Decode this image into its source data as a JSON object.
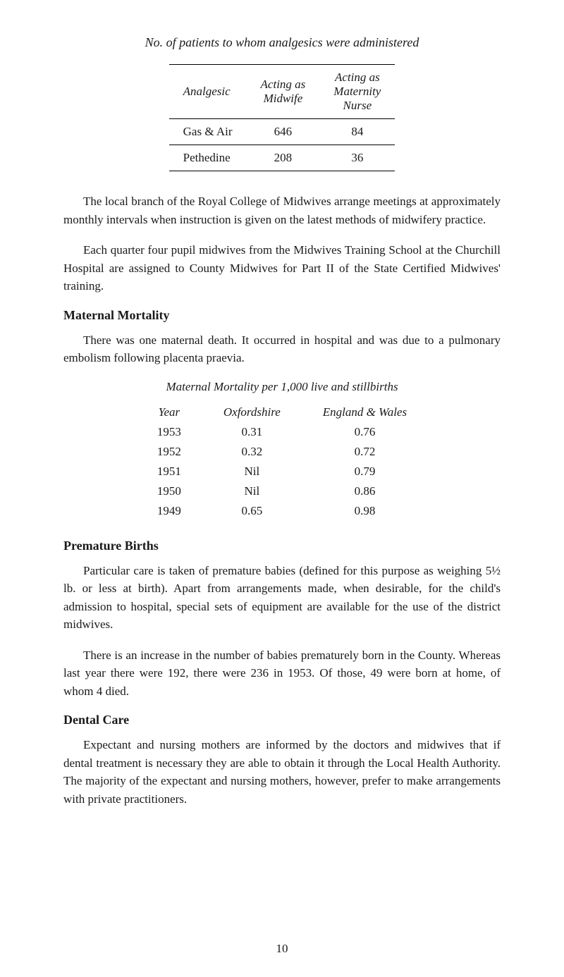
{
  "title": "No. of patients to whom analgesics were administered",
  "table1": {
    "headers": {
      "col1": "Analgesic",
      "col2": "Acting as Midwife",
      "col3": "Acting as Maternity Nurse"
    },
    "rows": [
      {
        "analgesic": "Gas & Air",
        "midwife": "646",
        "nurse": "84"
      },
      {
        "analgesic": "Pethedine",
        "midwife": "208",
        "nurse": "36"
      }
    ]
  },
  "para1": "The local branch of the Royal College of Midwives arrange meetings at approximately monthly intervals when instruction is given on the latest methods of midwifery practice.",
  "para2": "Each quarter four pupil midwives from the Midwives Training School at the Churchill Hospital are assigned to County Midwives for Part II of the State Certified Midwives' training.",
  "section1": {
    "heading": "Maternal Mortality",
    "para": "There was one maternal death. It occurred in hospital and was due to a pulmonary embolism following placenta praevia.",
    "subtitle": "Maternal Mortality per 1,000 live and stillbirths",
    "table": {
      "headers": {
        "year": "Year",
        "oxford": "Oxfordshire",
        "england": "England & Wales"
      },
      "rows": [
        {
          "year": "1953",
          "oxford": "0.31",
          "england": "0.76"
        },
        {
          "year": "1952",
          "oxford": "0.32",
          "england": "0.72"
        },
        {
          "year": "1951",
          "oxford": "Nil",
          "england": "0.79"
        },
        {
          "year": "1950",
          "oxford": "Nil",
          "england": "0.86"
        },
        {
          "year": "1949",
          "oxford": "0.65",
          "england": "0.98"
        }
      ]
    }
  },
  "section2": {
    "heading": "Premature Births",
    "para1": "Particular care is taken of premature babies (defined for this purpose as weighing 5½ lb. or less at birth). Apart from arrangements made, when desirable, for the child's admission to hospital, special sets of equipment are available for the use of the district midwives.",
    "para2": "There is an increase in the number of babies prematurely born in the County. Whereas last year there were 192, there were 236 in 1953. Of those, 49 were born at home, of whom 4 died."
  },
  "section3": {
    "heading": "Dental Care",
    "para": "Expectant and nursing mothers are informed by the doctors and midwives that if dental treatment is necessary they are able to obtain it through the Local Health Authority. The majority of the expectant and nursing mothers, however, prefer to make arrangements with private practitioners."
  },
  "pageNumber": "10"
}
